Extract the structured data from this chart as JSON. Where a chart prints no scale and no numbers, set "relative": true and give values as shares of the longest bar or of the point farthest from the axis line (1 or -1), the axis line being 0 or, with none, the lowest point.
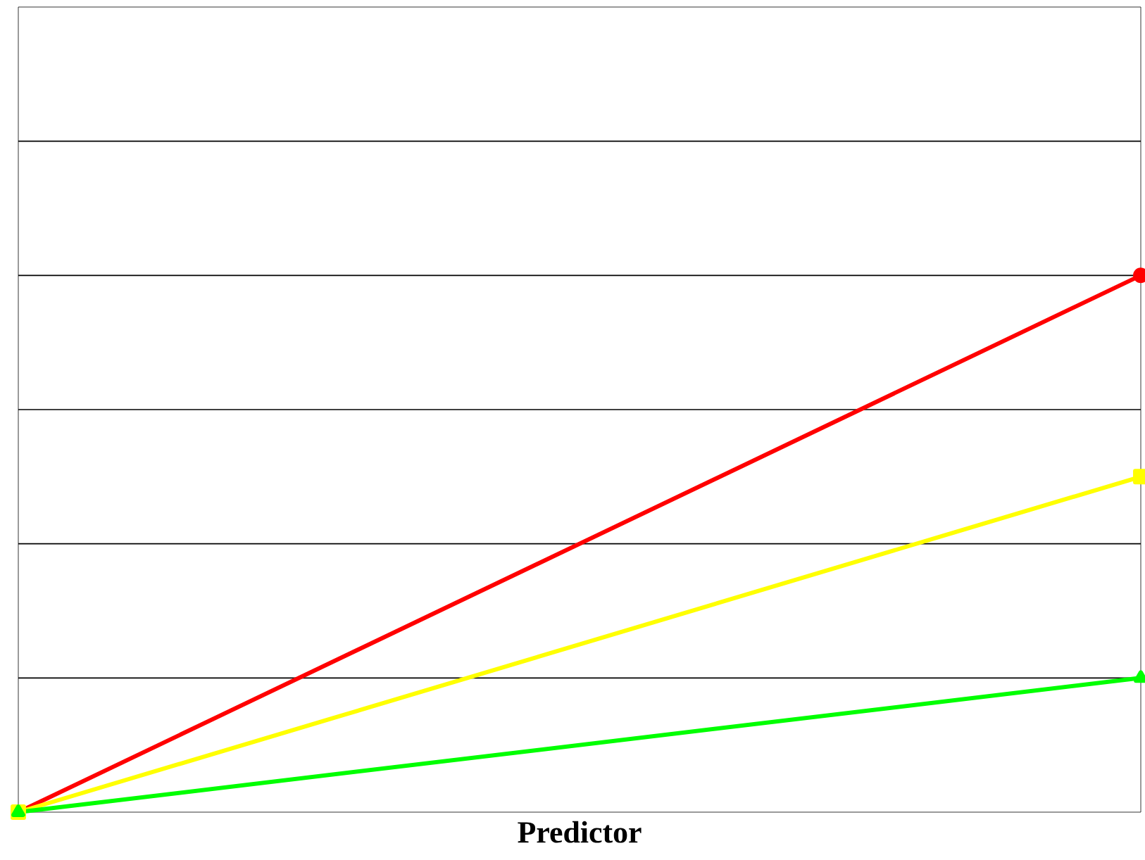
{
  "chart_data": {
    "type": "line",
    "xlabel": "**Predictor**",
    "categories": [
      null,
      null
    ],
    "relative": true,
    "series": [
      {
        "color": "#ff0000",
        "values": [
          0,
          1
        ],
        "marker": "circle"
      },
      {
        "color": "#ffff00",
        "values": [
          0,
          0.625
        ],
        "marker": "square"
      },
      {
        "color": "#00ff00",
        "values": [
          0,
          0.25
        ],
        "marker": "triangle"
      }
    ],
    "ref_lines": [
      {
        "axis": "y",
        "value": 0.25,
        "color": "#000000"
      },
      {
        "axis": "y",
        "value": 0.5,
        "color": "#000000"
      },
      {
        "axis": "y",
        "value": 0.75,
        "color": "#000000"
      },
      {
        "axis": "y",
        "value": 1,
        "color": "#000000"
      },
      {
        "axis": "y",
        "value": 1.25,
        "color": "#000000"
      }
    ]
  }
}
